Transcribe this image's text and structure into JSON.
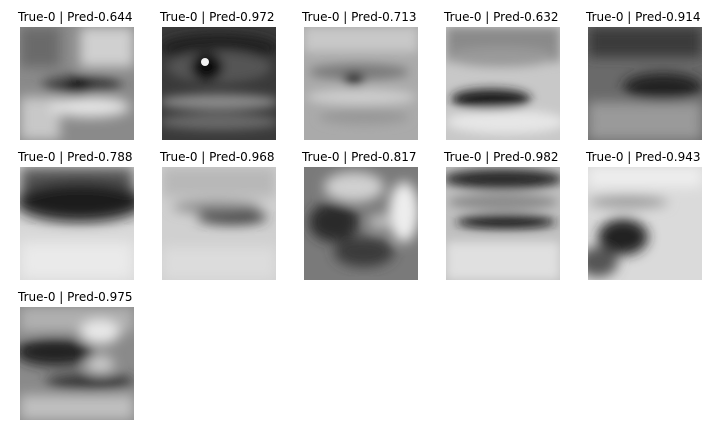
{
  "grid": {
    "items": [
      {
        "title": "True-0 | Pred-0.644",
        "true_label": 0,
        "pred": 0.644
      },
      {
        "title": "True-0 | Pred-0.972",
        "true_label": 0,
        "pred": 0.972
      },
      {
        "title": "True-0 | Pred-0.713",
        "true_label": 0,
        "pred": 0.713
      },
      {
        "title": "True-0 | Pred-0.632",
        "true_label": 0,
        "pred": 0.632
      },
      {
        "title": "True-0 | Pred-0.914",
        "true_label": 0,
        "pred": 0.914
      },
      {
        "title": "True-0 | Pred-0.788",
        "true_label": 0,
        "pred": 0.788
      },
      {
        "title": "True-0 | Pred-0.968",
        "true_label": 0,
        "pred": 0.968
      },
      {
        "title": "True-0 | Pred-0.817",
        "true_label": 0,
        "pred": 0.817
      },
      {
        "title": "True-0 | Pred-0.982",
        "true_label": 0,
        "pred": 0.982
      },
      {
        "title": "True-0 | Pred-0.943",
        "true_label": 0,
        "pred": 0.943
      },
      {
        "title": "True-0 | Pred-0.975",
        "true_label": 0,
        "pred": 0.975
      }
    ]
  },
  "colors": {
    "background": "#ffffff",
    "text": "#000000"
  }
}
